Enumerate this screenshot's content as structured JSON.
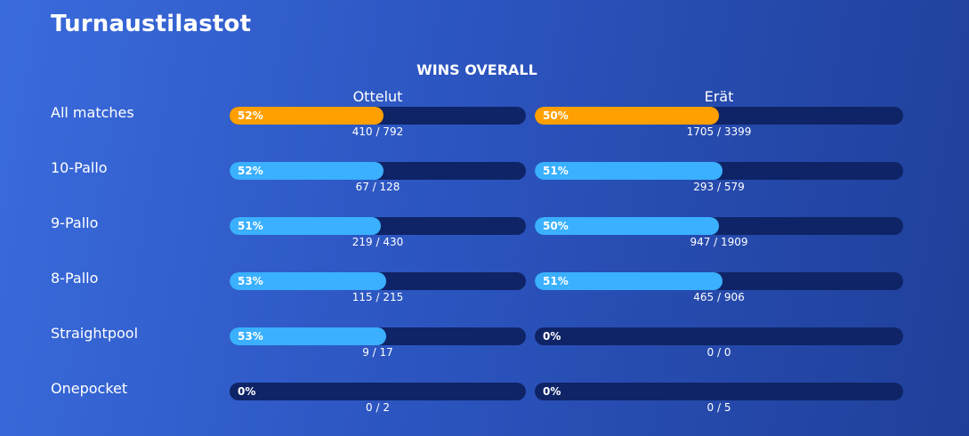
{
  "title": "Turnaustilastot",
  "section_title": "WINS OVERALL",
  "columns": [
    "Ottelut",
    "Erät"
  ],
  "colors": {
    "highlight": "#ff9f00",
    "normal": "#3ab0ff",
    "track": "#0f2466"
  },
  "rows": [
    {
      "label": "All matches",
      "matches": {
        "pct": "52%",
        "count": "410 / 792",
        "value": 0.52
      },
      "frames": {
        "pct": "50%",
        "count": "1705 / 3399",
        "value": 0.5
      },
      "highlight": true
    },
    {
      "label": "10-Pallo",
      "matches": {
        "pct": "52%",
        "count": "67 / 128",
        "value": 0.52
      },
      "frames": {
        "pct": "51%",
        "count": "293 / 579",
        "value": 0.51
      },
      "highlight": false
    },
    {
      "label": "9-Pallo",
      "matches": {
        "pct": "51%",
        "count": "219 / 430",
        "value": 0.51
      },
      "frames": {
        "pct": "50%",
        "count": "947 / 1909",
        "value": 0.5
      },
      "highlight": false
    },
    {
      "label": "8-Pallo",
      "matches": {
        "pct": "53%",
        "count": "115 / 215",
        "value": 0.53
      },
      "frames": {
        "pct": "51%",
        "count": "465 / 906",
        "value": 0.51
      },
      "highlight": false
    },
    {
      "label": "Straightpool",
      "matches": {
        "pct": "53%",
        "count": "9 / 17",
        "value": 0.53
      },
      "frames": {
        "pct": "0%",
        "count": "0 / 0",
        "value": 0
      },
      "highlight": false
    },
    {
      "label": "Onepocket",
      "matches": {
        "pct": "0%",
        "count": "0 / 2",
        "value": 0
      },
      "frames": {
        "pct": "0%",
        "count": "0 / 5",
        "value": 0
      },
      "highlight": false
    }
  ]
}
